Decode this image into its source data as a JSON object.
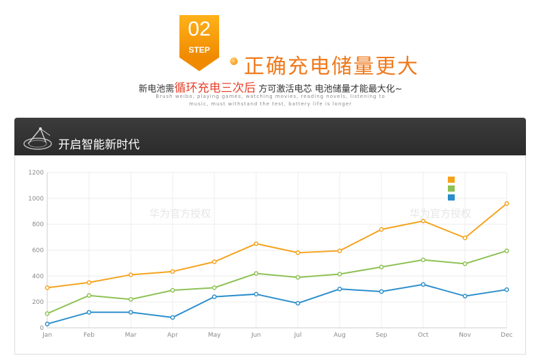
{
  "header": {
    "step_number": "02",
    "step_word": "STEP",
    "headline": "正确充电储量更大",
    "subline_prefix": "新电池需",
    "subline_highlight": "循环充电三次后",
    "subline_suffix": " 方可激活电芯  电池储量才能最大化~",
    "english_line1": "Brush weibo, playing games, watching movies, reading novels, listening to",
    "english_line2": "music, must withstand the test, battery life is longer"
  },
  "panel": {
    "title": "开启智能新时代",
    "logo_icon": "satellite-dish-icon"
  },
  "watermarks": [
    "华为官方授权",
    "华为官方授权"
  ],
  "chart_data": {
    "type": "line",
    "title": "",
    "xlabel": "",
    "ylabel": "",
    "categories": [
      "Jan",
      "Feb",
      "Mar",
      "Apr",
      "May",
      "Jun",
      "Jul",
      "Aug",
      "Sep",
      "Oct",
      "Nov",
      "Dec"
    ],
    "yticks": [
      "0",
      "200",
      "400",
      "600",
      "800",
      "1000",
      "1200"
    ],
    "ylim": [
      0,
      1200
    ],
    "grid": true,
    "legend": {
      "placement": "top-right",
      "labels_visible": false
    },
    "series": [
      {
        "color": "#f5a21b",
        "values": [
          310,
          350,
          410,
          435,
          510,
          650,
          580,
          595,
          760,
          825,
          695,
          960
        ]
      },
      {
        "color": "#8dc153",
        "values": [
          110,
          250,
          220,
          290,
          310,
          420,
          390,
          415,
          470,
          525,
          495,
          595
        ]
      },
      {
        "color": "#2b8ecb",
        "values": [
          30,
          120,
          120,
          80,
          240,
          260,
          190,
          300,
          280,
          335,
          245,
          295
        ]
      }
    ]
  }
}
